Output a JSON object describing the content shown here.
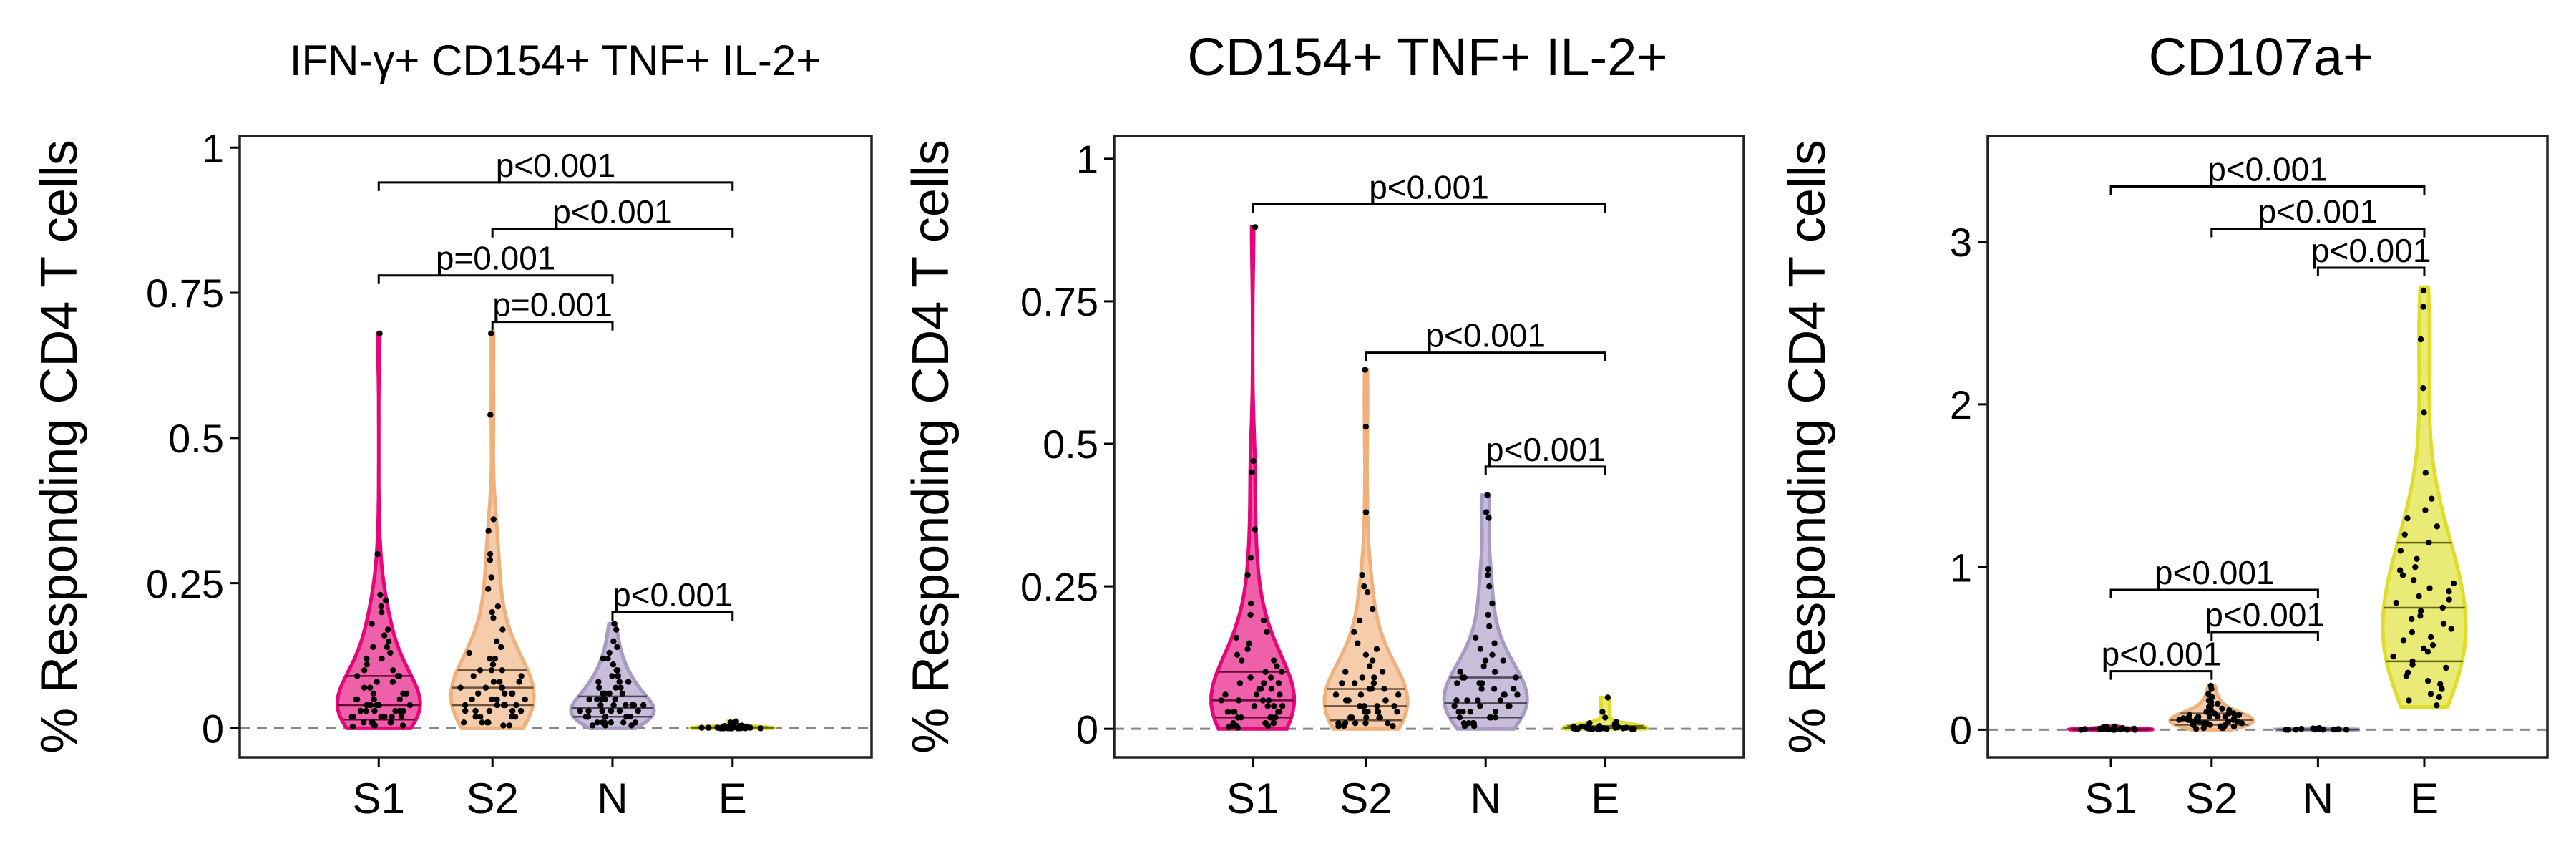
{
  "chart_data": [
    {
      "type": "violin",
      "title": "IFN-γ+ CD154+ TNF+ IL-2+",
      "xlabel": "",
      "ylabel": "% Responding CD4 T cells",
      "categories": [
        "S1",
        "S2",
        "N",
        "E"
      ],
      "colors": [
        "#e6067a",
        "#f0b07c",
        "#a99ac4",
        "#dede2a"
      ],
      "ylim": [
        -0.05,
        1.02
      ],
      "yticks": [
        0,
        0.25,
        0.5,
        0.75,
        1
      ],
      "ytick_labels": [
        "0",
        "0.25",
        "0.5",
        "0.75",
        "1"
      ],
      "reference_line_y": 0,
      "groups": [
        {
          "name": "S1",
          "max": 0.68,
          "q1": 0.015,
          "median": 0.04,
          "q3": 0.09,
          "points": [
            0.68,
            0.3,
            0.23,
            0.22,
            0.21,
            0.2,
            0.18,
            0.17,
            0.16,
            0.15,
            0.14,
            0.14,
            0.13,
            0.12,
            0.12,
            0.11,
            0.1,
            0.1,
            0.09,
            0.09,
            0.09,
            0.08,
            0.08,
            0.07,
            0.07,
            0.07,
            0.06,
            0.06,
            0.06,
            0.05,
            0.05,
            0.05,
            0.05,
            0.04,
            0.04,
            0.04,
            0.04,
            0.04,
            0.03,
            0.03,
            0.03,
            0.03,
            0.03,
            0.03,
            0.02,
            0.02,
            0.02,
            0.02,
            0.02,
            0.02,
            0.01,
            0.01,
            0.01,
            0.01,
            0.01,
            0.01,
            0.005,
            0.005,
            0.005,
            0.003
          ]
        },
        {
          "name": "S2",
          "max": 0.68,
          "q1": 0.04,
          "median": 0.07,
          "q3": 0.1,
          "points": [
            0.68,
            0.54,
            0.36,
            0.34,
            0.3,
            0.29,
            0.26,
            0.24,
            0.21,
            0.2,
            0.19,
            0.17,
            0.15,
            0.14,
            0.13,
            0.12,
            0.12,
            0.11,
            0.1,
            0.1,
            0.1,
            0.09,
            0.09,
            0.08,
            0.08,
            0.08,
            0.07,
            0.07,
            0.07,
            0.07,
            0.06,
            0.06,
            0.06,
            0.06,
            0.05,
            0.05,
            0.05,
            0.05,
            0.04,
            0.04,
            0.04,
            0.04,
            0.04,
            0.03,
            0.03,
            0.03,
            0.03,
            0.03,
            0.02,
            0.02,
            0.02,
            0.02,
            0.01,
            0.01,
            0.01,
            0.01,
            0.005,
            0.005
          ]
        },
        {
          "name": "N",
          "max": 0.18,
          "q1": 0.02,
          "median": 0.035,
          "q3": 0.055,
          "points": [
            0.18,
            0.17,
            0.15,
            0.14,
            0.13,
            0.12,
            0.12,
            0.11,
            0.1,
            0.1,
            0.09,
            0.09,
            0.09,
            0.08,
            0.08,
            0.08,
            0.07,
            0.07,
            0.07,
            0.06,
            0.06,
            0.06,
            0.06,
            0.05,
            0.05,
            0.05,
            0.05,
            0.05,
            0.04,
            0.04,
            0.04,
            0.04,
            0.04,
            0.04,
            0.03,
            0.03,
            0.03,
            0.03,
            0.03,
            0.03,
            0.03,
            0.02,
            0.02,
            0.02,
            0.02,
            0.02,
            0.02,
            0.02,
            0.01,
            0.01,
            0.01,
            0.01,
            0.01,
            0.01,
            0.005,
            0.005,
            0.005
          ]
        },
        {
          "name": "E",
          "max": 0.012,
          "q1": 0.001,
          "median": 0.002,
          "q3": 0.004,
          "points": [
            0.012,
            0.01,
            0.008,
            0.006,
            0.005,
            0.004,
            0.004,
            0.003,
            0.003,
            0.003,
            0.002,
            0.002,
            0.002,
            0.002,
            0.001,
            0.001,
            0.001,
            0.001,
            0.001,
            0.001,
            0.0,
            0.0,
            0.0,
            0.0,
            0.0,
            0.0,
            0.0,
            0.0,
            0.0,
            0.0,
            0.0,
            0.0
          ]
        }
      ],
      "annotations": [
        {
          "text": "p<0.001",
          "from": "S1",
          "to": "E",
          "y": 0.94
        },
        {
          "text": "p<0.001",
          "from": "S2",
          "to": "E",
          "y": 0.86
        },
        {
          "text": "p=0.001",
          "from": "S1",
          "to": "N",
          "y": 0.78
        },
        {
          "text": "p=0.001",
          "from": "S2",
          "to": "N",
          "y": 0.7
        },
        {
          "text": "p<0.001",
          "from": "N",
          "to": "E",
          "y": 0.2
        }
      ]
    },
    {
      "type": "violin",
      "title": "CD154+ TNF+ IL-2+",
      "xlabel": "",
      "ylabel": "% Responding CD4 T cells",
      "categories": [
        "S1",
        "S2",
        "N",
        "E"
      ],
      "colors": [
        "#e6067a",
        "#f0b07c",
        "#a99ac4",
        "#dede2a"
      ],
      "ylim": [
        -0.05,
        1.04
      ],
      "yticks": [
        0,
        0.25,
        0.5,
        0.75,
        1
      ],
      "ytick_labels": [
        "0",
        "0.25",
        "0.5",
        "0.75",
        "1"
      ],
      "reference_line_y": 0,
      "groups": [
        {
          "name": "S1",
          "max": 0.88,
          "q1": 0.02,
          "median": 0.05,
          "q3": 0.1,
          "points": [
            0.88,
            0.47,
            0.45,
            0.35,
            0.3,
            0.27,
            0.22,
            0.2,
            0.19,
            0.17,
            0.16,
            0.15,
            0.14,
            0.13,
            0.12,
            0.12,
            0.11,
            0.1,
            0.1,
            0.09,
            0.09,
            0.08,
            0.08,
            0.08,
            0.07,
            0.07,
            0.07,
            0.06,
            0.06,
            0.06,
            0.05,
            0.05,
            0.05,
            0.05,
            0.04,
            0.04,
            0.04,
            0.04,
            0.03,
            0.03,
            0.03,
            0.03,
            0.03,
            0.02,
            0.02,
            0.02,
            0.02,
            0.02,
            0.01,
            0.01,
            0.01,
            0.01,
            0.01,
            0.005,
            0.005,
            0.005,
            0.003,
            0.002
          ]
        },
        {
          "name": "S2",
          "max": 0.63,
          "q1": 0.015,
          "median": 0.04,
          "q3": 0.07,
          "points": [
            0.63,
            0.53,
            0.38,
            0.27,
            0.25,
            0.24,
            0.21,
            0.19,
            0.17,
            0.15,
            0.14,
            0.13,
            0.12,
            0.11,
            0.1,
            0.1,
            0.09,
            0.09,
            0.08,
            0.08,
            0.08,
            0.07,
            0.07,
            0.07,
            0.06,
            0.06,
            0.06,
            0.05,
            0.05,
            0.05,
            0.05,
            0.04,
            0.04,
            0.04,
            0.04,
            0.03,
            0.03,
            0.03,
            0.03,
            0.03,
            0.02,
            0.02,
            0.02,
            0.02,
            0.02,
            0.01,
            0.01,
            0.01,
            0.01,
            0.01,
            0.005,
            0.005,
            0.005
          ]
        },
        {
          "name": "N",
          "max": 0.41,
          "q1": 0.02,
          "median": 0.045,
          "q3": 0.09,
          "points": [
            0.41,
            0.38,
            0.37,
            0.28,
            0.27,
            0.25,
            0.22,
            0.2,
            0.18,
            0.16,
            0.15,
            0.14,
            0.13,
            0.12,
            0.12,
            0.11,
            0.1,
            0.1,
            0.09,
            0.09,
            0.09,
            0.08,
            0.08,
            0.08,
            0.07,
            0.07,
            0.07,
            0.06,
            0.06,
            0.06,
            0.05,
            0.05,
            0.05,
            0.05,
            0.04,
            0.04,
            0.04,
            0.04,
            0.03,
            0.03,
            0.03,
            0.03,
            0.02,
            0.02,
            0.02,
            0.02,
            0.01,
            0.01,
            0.01,
            0.01,
            0.005,
            0.005
          ]
        },
        {
          "name": "E",
          "max": 0.055,
          "q1": 0.001,
          "median": 0.002,
          "q3": 0.005,
          "points": [
            0.055,
            0.03,
            0.02,
            0.012,
            0.01,
            0.008,
            0.006,
            0.005,
            0.004,
            0.004,
            0.003,
            0.003,
            0.002,
            0.002,
            0.002,
            0.001,
            0.001,
            0.001,
            0.001,
            0.0,
            0.0,
            0.0,
            0.0,
            0.0,
            0.0,
            0.0,
            0.0,
            0.0,
            0.0,
            0.0
          ]
        }
      ],
      "annotations": [
        {
          "text": "p<0.001",
          "from": "S1",
          "to": "E",
          "y": 0.92
        },
        {
          "text": "p<0.001",
          "from": "S2",
          "to": "E",
          "y": 0.66
        },
        {
          "text": "p<0.001",
          "from": "N",
          "to": "E",
          "y": 0.46
        }
      ]
    },
    {
      "type": "violin",
      "title": "CD107a+",
      "xlabel": "",
      "ylabel": "% Responding CD4 T cells",
      "categories": [
        "S1",
        "S2",
        "N",
        "E"
      ],
      "colors": [
        "#e6067a",
        "#f0b07c",
        "#a99ac4",
        "#dede2a"
      ],
      "ylim": [
        -0.17,
        3.65
      ],
      "yticks": [
        0,
        1,
        2,
        3
      ],
      "ytick_labels": [
        "0",
        "1",
        "2",
        "3"
      ],
      "reference_line_y": 0,
      "groups": [
        {
          "name": "S1",
          "max": 0.02,
          "q1": 0.0,
          "median": 0.003,
          "q3": 0.008,
          "points": [
            0.02,
            0.018,
            0.015,
            0.012,
            0.01,
            0.008,
            0.007,
            0.006,
            0.005,
            0.004,
            0.003,
            0.003,
            0.002,
            0.002,
            0.001,
            0.001,
            0.0,
            0.0,
            0.0,
            0.0,
            0.0,
            0.0
          ]
        },
        {
          "name": "S2",
          "max": 0.27,
          "q1": 0.03,
          "median": 0.06,
          "q3": 0.1,
          "points": [
            0.27,
            0.25,
            0.22,
            0.2,
            0.18,
            0.17,
            0.16,
            0.15,
            0.14,
            0.13,
            0.12,
            0.12,
            0.11,
            0.11,
            0.1,
            0.1,
            0.1,
            0.09,
            0.09,
            0.09,
            0.08,
            0.08,
            0.08,
            0.08,
            0.07,
            0.07,
            0.07,
            0.07,
            0.06,
            0.06,
            0.06,
            0.06,
            0.05,
            0.05,
            0.05,
            0.05,
            0.04,
            0.04,
            0.04,
            0.04,
            0.03,
            0.03,
            0.03,
            0.03,
            0.02,
            0.02,
            0.02,
            0.02,
            0.01,
            0.01,
            0.01,
            0.005
          ]
        },
        {
          "name": "N",
          "max": 0.01,
          "q1": 0.0,
          "median": 0.001,
          "q3": 0.003,
          "points": [
            0.01,
            0.008,
            0.006,
            0.005,
            0.004,
            0.003,
            0.002,
            0.002,
            0.001,
            0.001,
            0.0,
            0.0,
            0.0,
            0.0,
            0.0
          ]
        },
        {
          "name": "E",
          "min": 0.14,
          "max": 2.72,
          "q1": 0.42,
          "median": 0.75,
          "q3": 1.15,
          "points": [
            2.7,
            2.6,
            2.4,
            2.1,
            1.95,
            1.58,
            1.42,
            1.35,
            1.3,
            1.25,
            1.2,
            1.15,
            1.1,
            1.05,
            1.0,
            0.98,
            0.95,
            0.92,
            0.9,
            0.87,
            0.85,
            0.82,
            0.8,
            0.78,
            0.75,
            0.73,
            0.7,
            0.68,
            0.65,
            0.62,
            0.6,
            0.57,
            0.55,
            0.52,
            0.5,
            0.48,
            0.45,
            0.42,
            0.4,
            0.38,
            0.35,
            0.33,
            0.3,
            0.28,
            0.25,
            0.22,
            0.2,
            0.18,
            0.15
          ]
        }
      ],
      "annotations": [
        {
          "text": "p<0.001",
          "from": "S1",
          "to": "E",
          "y": 3.34
        },
        {
          "text": "p<0.001",
          "from": "S2",
          "to": "E",
          "y": 3.08
        },
        {
          "text": "p<0.001",
          "from": "N",
          "to": "E",
          "y": 2.84
        },
        {
          "text": "p<0.001",
          "from": "S1",
          "to": "N",
          "y": 0.86
        },
        {
          "text": "p<0.001",
          "from": "S2",
          "to": "N",
          "y": 0.6
        },
        {
          "text": "p<0.001",
          "from": "S1",
          "to": "S2",
          "y": 0.36
        }
      ]
    }
  ]
}
